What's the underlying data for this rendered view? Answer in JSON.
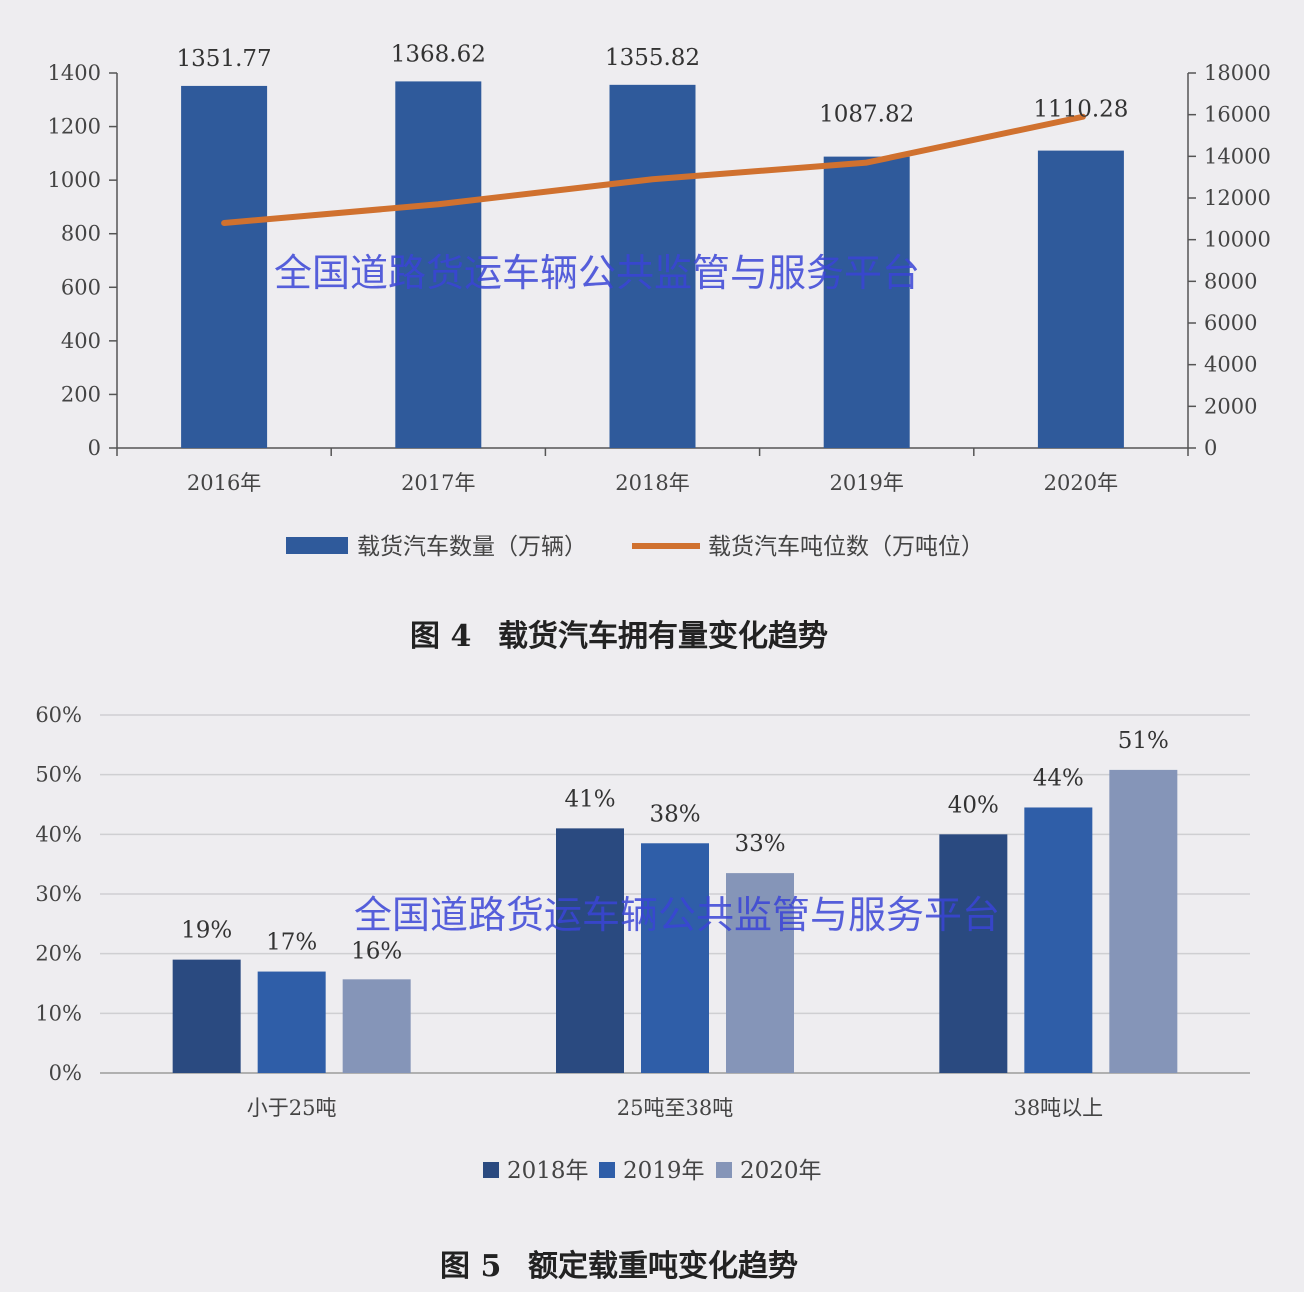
{
  "chart_data": [
    {
      "type": "bar",
      "categories": [
        "2016年",
        "2017年",
        "2018年",
        "2019年",
        "2020年"
      ],
      "series": [
        {
          "name": "载货汽车数量（万辆）",
          "type": "bar",
          "axis": "left",
          "color": "#2f5a9b",
          "values": [
            1351.77,
            1368.62,
            1355.82,
            1087.82,
            1110.28
          ]
        },
        {
          "name": "载货汽车吨位数（万吨位）",
          "type": "line",
          "axis": "right",
          "color": "#d0712f",
          "values": [
            10800,
            11700,
            12900,
            13700,
            15900
          ]
        }
      ],
      "data_labels": [
        "1351.77",
        "1368.62",
        "1355.82",
        "1087.82",
        "1110.28"
      ],
      "ylim_left": [
        0,
        1400
      ],
      "yticks_left": [
        "0",
        "200",
        "400",
        "600",
        "800",
        "1000",
        "1200",
        "1400"
      ],
      "ylim_right": [
        0,
        18000
      ],
      "yticks_right": [
        "0",
        "2000",
        "4000",
        "6000",
        "8000",
        "10000",
        "12000",
        "14000",
        "16000",
        "18000"
      ],
      "legend_position": "bottom",
      "caption_num": "图 4",
      "caption_text": "载货汽车拥有量变化趋势",
      "watermark": "全国道路货运车辆公共监管与服务平台"
    },
    {
      "type": "bar",
      "categories": [
        "小于25吨",
        "25吨至38吨",
        "38吨以上"
      ],
      "series": [
        {
          "name": "2018年",
          "color": "#2a4a80",
          "values": [
            0.19,
            0.41,
            0.4
          ],
          "labels": [
            "19%",
            "41%",
            "40%"
          ]
        },
        {
          "name": "2019年",
          "color": "#2f5ea8",
          "values": [
            0.17,
            0.385,
            0.445
          ],
          "labels": [
            "17%",
            "38%",
            "44%"
          ]
        },
        {
          "name": "2020年",
          "color": "#8595b8",
          "values": [
            0.157,
            0.335,
            0.508
          ],
          "labels": [
            "16%",
            "33%",
            "51%"
          ]
        }
      ],
      "ylim": [
        0,
        0.6
      ],
      "yticks": [
        "0%",
        "10%",
        "20%",
        "30%",
        "40%",
        "50%",
        "60%"
      ],
      "grid": true,
      "legend_position": "bottom",
      "caption_num": "图 5",
      "caption_text": "额定载重吨变化趋势",
      "watermark": "全国道路货运车辆公共监管与服务平台"
    }
  ]
}
